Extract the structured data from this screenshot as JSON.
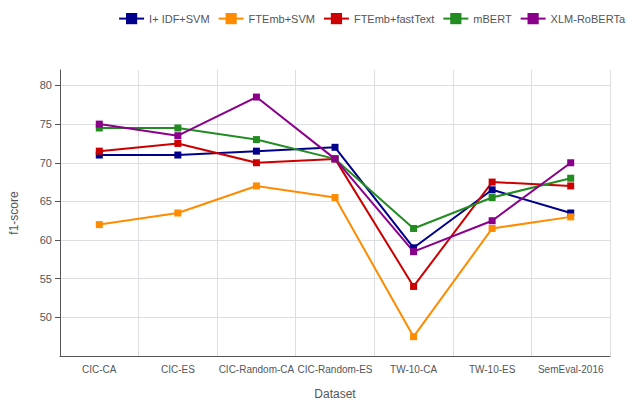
{
  "chart_data": {
    "type": "line",
    "xlabel": "Dataset",
    "ylabel": "f1-score",
    "categories": [
      "CIC-CA",
      "CIC-ES",
      "CIC-Random-CA",
      "CIC-Random-ES",
      "TW-10-CA",
      "TW-10-ES",
      "SemEval-2016"
    ],
    "series": [
      {
        "name": "I+ IDF+SVM",
        "color": "#00008B",
        "values": [
          71.0,
          71.0,
          71.5,
          72.0,
          59.0,
          66.5,
          63.5
        ]
      },
      {
        "name": "FTEmb+SVM",
        "color": "#FF8C00",
        "values": [
          62.0,
          63.5,
          67.0,
          65.5,
          47.5,
          61.5,
          63.0
        ]
      },
      {
        "name": "FTEmb+fastText",
        "color": "#CC0000",
        "values": [
          71.5,
          72.5,
          70.0,
          70.5,
          54.0,
          67.5,
          67.0
        ]
      },
      {
        "name": "mBERT",
        "color": "#228B22",
        "values": [
          74.5,
          74.5,
          73.0,
          70.5,
          61.5,
          65.5,
          68.0
        ]
      },
      {
        "name": "XLM-RoBERTa",
        "color": "#8B008B",
        "values": [
          75.0,
          73.5,
          78.5,
          70.5,
          58.5,
          62.5,
          70.0
        ]
      }
    ],
    "marker": "square",
    "ylim": [
      45,
      82
    ],
    "yticks": [
      50,
      55,
      60,
      65,
      70,
      75,
      80
    ],
    "grid": true,
    "legend": "upper right"
  }
}
